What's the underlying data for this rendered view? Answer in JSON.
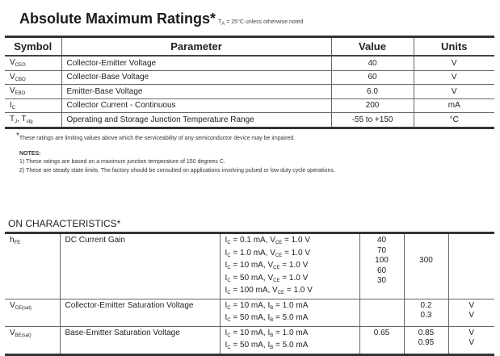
{
  "title": "Absolute Maximum Ratings*",
  "condition": "T<sub>A</sub> = 25°C unless otherwise noted",
  "amr": {
    "headers": [
      "Symbol",
      "Parameter",
      "Value",
      "Units"
    ],
    "rows": [
      {
        "sym": "V",
        "sub": "CEO",
        "param": "Collector-Emitter Voltage",
        "value": "40",
        "unit": "V"
      },
      {
        "sym": "V",
        "sub": "CBO",
        "param": "Collector-Base Voltage",
        "value": "60",
        "unit": "V"
      },
      {
        "sym": "V",
        "sub": "EBO",
        "param": "Emitter-Base Voltage",
        "value": "6.0",
        "unit": "V"
      },
      {
        "sym": "I",
        "sub": "C",
        "param": "Collector Current - Continuous",
        "value": "200",
        "unit": "mA"
      },
      {
        "sym": "T",
        "sub": "J",
        "sym2": ", T",
        "sub2": "stg",
        "param": "Operating and Storage Junction Temperature Range",
        "value": "-55 to +150",
        "unit": "°C"
      }
    ]
  },
  "footnote": "These ratings are limiting values above which the serviceability of any semiconductor device may be impaired.",
  "notes_title": "NOTES:",
  "notes": [
    "1) These ratings are based on a maximum junction temperature of 150 degrees C.",
    "2) These are steady state limits. The factory should be consulted on applications involving pulsed or low duty cycle operations."
  ],
  "on": {
    "title": "ON CHARACTERISTICS*",
    "rows": [
      {
        "sym": "h",
        "sub": "FE",
        "param": "DC Current Gain",
        "conds": [
          [
            "I",
            "C",
            " = 0.1 mA, V",
            "CE",
            " = 1.0 V"
          ],
          [
            "I",
            "C",
            " = 1.0 mA, V",
            "CE",
            " = 1.0 V"
          ],
          [
            "I",
            "C",
            " = 10 mA, V",
            "CE",
            " = 1.0 V"
          ],
          [
            "I",
            "C",
            " = 50 mA, V",
            "CE",
            " = 1.0 V"
          ],
          [
            "I",
            "C",
            " = 100 mA, V",
            "CE",
            " = 1.0 V"
          ]
        ],
        "min": [
          "40",
          "70",
          "100",
          "60",
          "30"
        ],
        "max": [
          "",
          "",
          "300",
          "",
          ""
        ],
        "unit": [
          "",
          "",
          "",
          "",
          ""
        ]
      },
      {
        "sym": "V",
        "sub": "CE(sat)",
        "param": "Collector-Emitter Saturation Voltage",
        "conds": [
          [
            "I",
            "C",
            " = 10 mA, I",
            "B",
            " = 1.0 mA"
          ],
          [
            "I",
            "C",
            " = 50 mA, I",
            "B",
            " = 5.0 mA"
          ]
        ],
        "min": [
          "",
          ""
        ],
        "max": [
          "0.2",
          "0.3"
        ],
        "unit": [
          "V",
          "V"
        ]
      },
      {
        "sym": "V",
        "sub": "BE(sat)",
        "param": "Base-Emitter Saturation Voltage",
        "conds": [
          [
            "I",
            "C",
            " = 10 mA, I",
            "B",
            " = 1.0 mA"
          ],
          [
            "I",
            "C",
            " = 50 mA, I",
            "B",
            " = 5.0 mA"
          ]
        ],
        "min": [
          "0.65",
          ""
        ],
        "max": [
          "0.85",
          "0.95"
        ],
        "unit": [
          "V",
          "V"
        ]
      }
    ]
  }
}
